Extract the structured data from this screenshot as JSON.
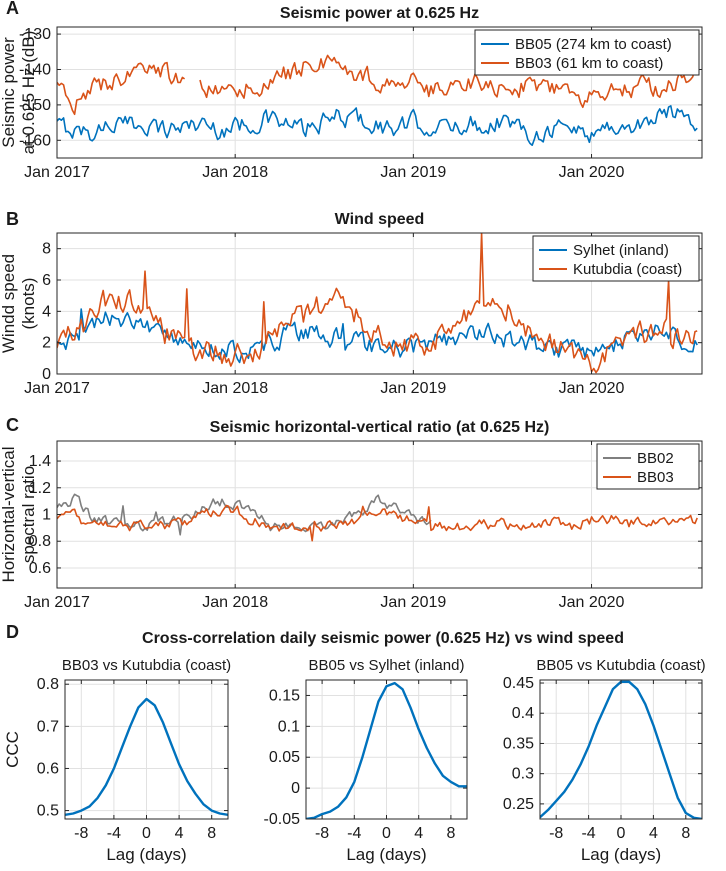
{
  "chart_data": [
    {
      "panel_letter": "A",
      "type": "line",
      "title": "Seismic power at 0.625 Hz",
      "ylabel_lines": [
        "Seismic power",
        "at 0.625 Hz (dB)"
      ],
      "ylim": [
        -165,
        -128
      ],
      "yticks": [
        -160,
        -150,
        -140,
        -130
      ],
      "ytick_labels": [
        "-160",
        "-150",
        "-140",
        "-130"
      ],
      "xlim": [
        2017.0,
        2020.62
      ],
      "xticks": [
        2017,
        2018,
        2019,
        2020
      ],
      "xtick_labels": [
        "Jan 2017",
        "Jan 2018",
        "Jan 2019",
        "Jan 2020"
      ],
      "grid": true,
      "legend_position": "top-right",
      "series": [
        {
          "name": "BB05 (274 km to coast)",
          "color": "#0072BD",
          "x": [
            2017.0,
            2017.1,
            2017.2,
            2017.3,
            2017.4,
            2017.5,
            2017.6,
            2017.7,
            2017.8,
            2017.9,
            2018.0,
            2018.1,
            2018.2,
            2018.3,
            2018.4,
            2018.5,
            2018.6,
            2018.7,
            2018.8,
            2018.9,
            2019.0,
            2019.1,
            2019.2,
            2019.3,
            2019.4,
            2019.5,
            2019.6,
            2019.7,
            2019.8,
            2019.9,
            2020.0,
            2020.1,
            2020.2,
            2020.3,
            2020.4,
            2020.5,
            2020.6
          ],
          "values": [
            -156,
            -157,
            -158,
            -155,
            -156,
            -155,
            -157,
            -156,
            -155,
            -157,
            -156,
            -155,
            -154,
            -156,
            -157,
            -155,
            -153,
            -154,
            -156,
            -157,
            -155,
            -156,
            -157,
            -155,
            -156,
            -154,
            -157,
            -158,
            -156,
            -157,
            -158,
            -156,
            -157,
            -155,
            -153,
            -151,
            -156
          ]
        },
        {
          "name": "BB03 (61 km to coast)",
          "color": "#D95319",
          "x": [
            2017.0,
            2017.1,
            2017.2,
            2017.3,
            2017.4,
            2017.5,
            2017.6,
            2017.7,
            2017.8,
            2017.9,
            2018.0,
            2018.1,
            2018.2,
            2018.3,
            2018.4,
            2018.5,
            2018.6,
            2018.7,
            2018.8,
            2018.9,
            2019.0,
            2019.1,
            2019.2,
            2019.3,
            2019.4,
            2019.5,
            2019.6,
            2019.7,
            2019.8,
            2019.9,
            2020.0,
            2020.1,
            2020.2,
            2020.3,
            2020.4,
            2020.5,
            2020.6
          ],
          "values": [
            -146,
            -149,
            -146,
            -143,
            -142,
            -140,
            -141,
            -144,
            -145,
            -147,
            -146,
            -145,
            -143,
            -141,
            -139,
            -138,
            -140,
            -141,
            -143,
            -145,
            -144,
            -146,
            -145,
            -143,
            -144,
            -146,
            -145,
            -144,
            -146,
            -148,
            -147,
            -145,
            -146,
            -144,
            -146,
            -142,
            -140
          ]
        }
      ]
    },
    {
      "panel_letter": "B",
      "type": "line",
      "title": "Wind speed",
      "ylabel_lines": [
        "Windd speed",
        "(knots)"
      ],
      "ylim": [
        0,
        9
      ],
      "yticks": [
        0,
        2,
        4,
        6,
        8
      ],
      "ytick_labels": [
        "0",
        "2",
        "4",
        "6",
        "8"
      ],
      "xlim": [
        2017.0,
        2020.62
      ],
      "xticks": [
        2017,
        2018,
        2019,
        2020
      ],
      "xtick_labels": [
        "Jan 2017",
        "Jan 2018",
        "Jan 2019",
        "Jan 2020"
      ],
      "grid": true,
      "legend_position": "top-right",
      "series": [
        {
          "name": "Sylhet (inland)",
          "color": "#0072BD",
          "x": [
            2017.0,
            2017.1,
            2017.2,
            2017.3,
            2017.4,
            2017.5,
            2017.6,
            2017.7,
            2017.8,
            2017.9,
            2018.0,
            2018.1,
            2018.2,
            2018.3,
            2018.4,
            2018.5,
            2018.6,
            2018.7,
            2018.8,
            2018.9,
            2019.0,
            2019.1,
            2019.2,
            2019.3,
            2019.4,
            2019.5,
            2019.6,
            2019.7,
            2019.8,
            2019.9,
            2020.0,
            2020.1,
            2020.2,
            2020.3,
            2020.4,
            2020.5,
            2020.6
          ],
          "values": [
            2.0,
            2.3,
            3.0,
            3.6,
            3.5,
            2.8,
            2.4,
            2.0,
            1.7,
            1.6,
            1.5,
            1.6,
            2.0,
            2.6,
            2.8,
            2.5,
            2.2,
            1.9,
            1.7,
            1.6,
            1.7,
            1.9,
            2.2,
            2.5,
            2.6,
            2.3,
            2.0,
            1.8,
            1.6,
            1.5,
            1.4,
            1.8,
            2.3,
            2.6,
            2.8,
            2.3,
            2.0
          ]
        },
        {
          "name": "Kutubdia (coast)",
          "color": "#D95319",
          "x": [
            2017.0,
            2017.1,
            2017.2,
            2017.3,
            2017.4,
            2017.5,
            2017.6,
            2017.7,
            2017.8,
            2017.9,
            2018.0,
            2018.1,
            2018.2,
            2018.3,
            2018.4,
            2018.5,
            2018.6,
            2018.7,
            2018.8,
            2018.9,
            2019.0,
            2019.1,
            2019.2,
            2019.3,
            2019.4,
            2019.5,
            2019.6,
            2019.7,
            2019.8,
            2019.9,
            2020.0,
            2020.1,
            2020.2,
            2020.3,
            2020.4,
            2020.5,
            2020.6
          ],
          "values": [
            2.0,
            2.6,
            3.6,
            5.0,
            4.6,
            3.4,
            2.6,
            1.8,
            1.5,
            1.3,
            1.3,
            1.6,
            2.2,
            3.0,
            3.8,
            4.5,
            4.8,
            3.6,
            2.4,
            1.9,
            1.8,
            2.1,
            2.6,
            3.8,
            4.6,
            4.7,
            3.4,
            2.3,
            1.8,
            1.2,
            0.9,
            1.5,
            2.4,
            2.7,
            2.6,
            2.4,
            3.0
          ]
        }
      ]
    },
    {
      "panel_letter": "C",
      "type": "line",
      "title": "Seismic horizontal-vertical ratio (at 0.625 Hz)",
      "ylabel_lines": [
        "Horizontal-vertical",
        "spectral ratio"
      ],
      "ylim": [
        0.45,
        1.55
      ],
      "yticks": [
        0.6,
        0.8,
        1.0,
        1.2,
        1.4
      ],
      "ytick_labels": [
        "0.6",
        "0.8",
        "1",
        "1.2",
        "1.4"
      ],
      "xlim": [
        2017.0,
        2020.62
      ],
      "xticks": [
        2017,
        2018,
        2019,
        2020
      ],
      "xtick_labels": [
        "Jan 2017",
        "Jan 2018",
        "Jan 2019",
        "Jan 2020"
      ],
      "grid": true,
      "legend_position": "top-right",
      "series": [
        {
          "name": "BB02",
          "color": "#7F7F7F",
          "x": [
            2017.0,
            2017.1,
            2017.2,
            2017.3,
            2017.4,
            2017.5,
            2017.6,
            2017.7,
            2017.8,
            2017.9,
            2018.0,
            2018.1,
            2018.2,
            2018.3,
            2018.4,
            2018.5,
            2018.6,
            2018.7,
            2018.8,
            2018.9,
            2019.0,
            2019.1
          ],
          "values": [
            1.05,
            1.12,
            0.98,
            0.93,
            0.92,
            0.91,
            0.93,
            0.96,
            1.03,
            1.1,
            1.08,
            1.0,
            0.91,
            0.9,
            0.91,
            0.92,
            0.95,
            1.02,
            1.12,
            1.05,
            0.97,
            0.93
          ]
        },
        {
          "name": "BB03",
          "color": "#D95319",
          "x": [
            2017.0,
            2017.1,
            2017.2,
            2017.3,
            2017.4,
            2017.5,
            2017.6,
            2017.7,
            2017.8,
            2017.9,
            2018.0,
            2018.1,
            2018.2,
            2018.3,
            2018.4,
            2018.5,
            2018.6,
            2018.7,
            2018.8,
            2018.9,
            2019.0,
            2019.1,
            2019.2,
            2019.3,
            2019.4,
            2019.5,
            2019.6,
            2019.7,
            2019.8,
            2019.9,
            2020.0,
            2020.1,
            2020.2,
            2020.3,
            2020.4,
            2020.5,
            2020.6
          ],
          "values": [
            0.98,
            1.0,
            0.9,
            0.92,
            0.91,
            0.92,
            0.92,
            0.94,
            0.98,
            1.02,
            1.05,
            0.95,
            0.91,
            0.9,
            0.92,
            0.91,
            0.93,
            0.97,
            1.03,
            0.99,
            0.95,
            0.92,
            0.91,
            0.9,
            0.92,
            0.93,
            0.92,
            0.93,
            0.95,
            0.9,
            0.96,
            0.97,
            0.93,
            0.94,
            0.95,
            0.94,
            0.95
          ]
        }
      ]
    },
    {
      "panel_letter": "D",
      "type": "line",
      "group_title": "Cross-correlation daily seismic power (0.625 Hz) vs wind speed",
      "title": "BB03 vs Kutubdia (coast)",
      "xlabel": "Lag (days)",
      "ylabel": "CCC",
      "xlim": [
        -10,
        10
      ],
      "xticks": [
        -8,
        -4,
        0,
        4,
        8
      ],
      "xtick_labels": [
        "-8",
        "-4",
        "0",
        "4",
        "8"
      ],
      "ylim": [
        0.48,
        0.81
      ],
      "yticks": [
        0.5,
        0.6,
        0.7,
        0.8
      ],
      "ytick_labels": [
        "0.5",
        "0.6",
        "0.7",
        "0.8"
      ],
      "grid": true,
      "series": [
        {
          "name": "CCC",
          "color": "#0072BD",
          "x": [
            -10,
            -9,
            -8,
            -7,
            -6,
            -5,
            -4,
            -3,
            -2,
            -1,
            0,
            1,
            2,
            3,
            4,
            5,
            6,
            7,
            8,
            9,
            10
          ],
          "values": [
            0.49,
            0.493,
            0.5,
            0.51,
            0.53,
            0.56,
            0.6,
            0.65,
            0.7,
            0.745,
            0.765,
            0.75,
            0.71,
            0.66,
            0.61,
            0.57,
            0.54,
            0.515,
            0.5,
            0.493,
            0.49
          ]
        }
      ]
    },
    {
      "type": "line",
      "title": "BB05 vs Sylhet (inland)",
      "xlabel": "Lag (days)",
      "ylabel": "",
      "xlim": [
        -10,
        10
      ],
      "xticks": [
        -8,
        -4,
        0,
        4,
        8
      ],
      "xtick_labels": [
        "-8",
        "-4",
        "0",
        "4",
        "8"
      ],
      "ylim": [
        -0.05,
        0.175
      ],
      "yticks": [
        -0.05,
        0,
        0.05,
        0.1,
        0.15
      ],
      "ytick_labels": [
        "-0.05",
        "0",
        "0.05",
        "0.1",
        "0.15"
      ],
      "grid": true,
      "series": [
        {
          "name": "CCC",
          "color": "#0072BD",
          "x": [
            -10,
            -9,
            -8,
            -7,
            -6,
            -5,
            -4,
            -3,
            -2,
            -1,
            0,
            1,
            2,
            3,
            4,
            5,
            6,
            7,
            8,
            9,
            10
          ],
          "values": [
            -0.05,
            -0.048,
            -0.042,
            -0.038,
            -0.03,
            -0.015,
            0.01,
            0.05,
            0.095,
            0.14,
            0.165,
            0.17,
            0.16,
            0.13,
            0.095,
            0.065,
            0.04,
            0.02,
            0.01,
            0.003,
            0.003
          ]
        }
      ]
    },
    {
      "type": "line",
      "title": "BB05 vs Kutubdia (coast)",
      "xlabel": "Lag (days)",
      "ylabel": "",
      "xlim": [
        -10,
        10
      ],
      "xticks": [
        -8,
        -4,
        0,
        4,
        8
      ],
      "xtick_labels": [
        "-8",
        "-4",
        "0",
        "4",
        "8"
      ],
      "ylim": [
        0.225,
        0.455
      ],
      "yticks": [
        0.25,
        0.3,
        0.35,
        0.4,
        0.45
      ],
      "ytick_labels": [
        "0.25",
        "0.3",
        "0.35",
        "0.4",
        "0.45"
      ],
      "grid": true,
      "series": [
        {
          "name": "CCC",
          "color": "#0072BD",
          "x": [
            -10,
            -9,
            -8,
            -7,
            -6,
            -5,
            -4,
            -3,
            -2,
            -1,
            0,
            1,
            2,
            3,
            4,
            5,
            6,
            7,
            8,
            9,
            10
          ],
          "values": [
            0.228,
            0.24,
            0.255,
            0.27,
            0.29,
            0.315,
            0.345,
            0.38,
            0.41,
            0.44,
            0.452,
            0.452,
            0.44,
            0.415,
            0.38,
            0.34,
            0.3,
            0.26,
            0.235,
            0.227,
            0.225
          ]
        }
      ]
    }
  ]
}
